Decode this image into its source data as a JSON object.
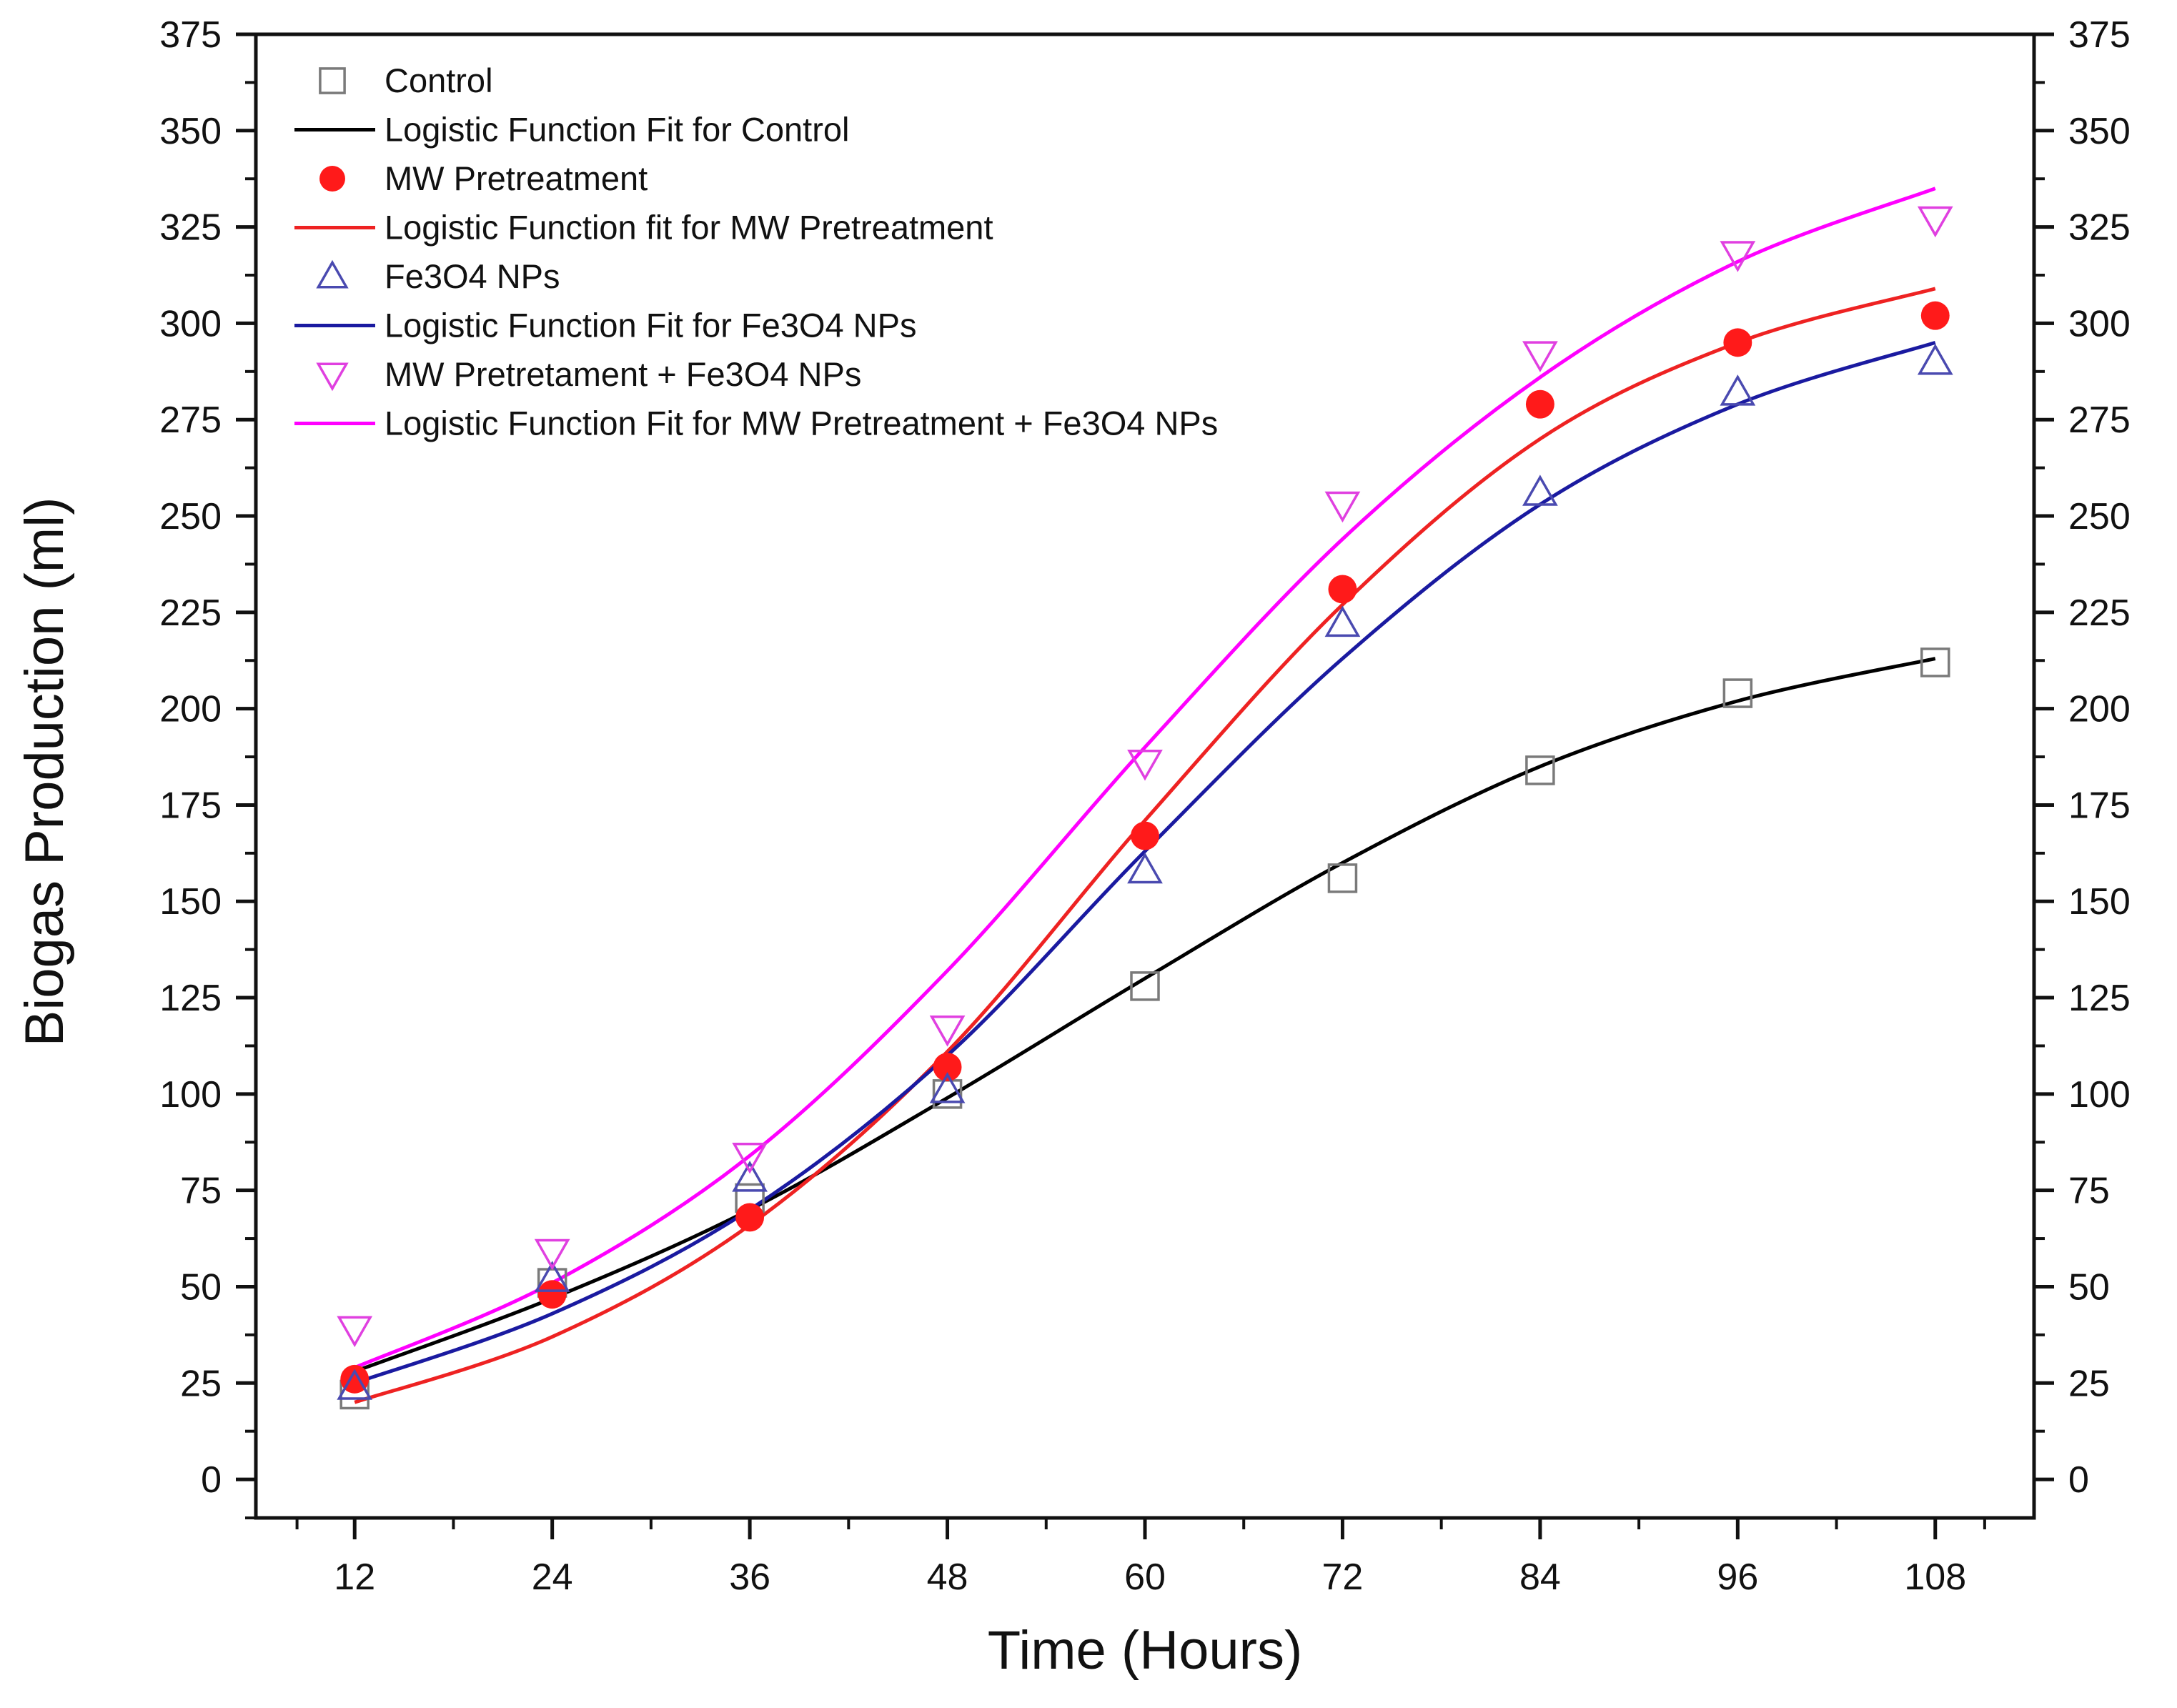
{
  "chart_data": {
    "type": "scatter",
    "title": "",
    "xlabel": "Time (Hours)",
    "ylabel": "Biogas Production (ml)",
    "xlim": [
      6,
      114
    ],
    "ylim": [
      -10,
      375
    ],
    "xticks": [
      12,
      24,
      36,
      48,
      60,
      72,
      84,
      96,
      108
    ],
    "xminor": [
      18,
      30,
      42,
      54,
      66,
      78,
      90,
      102
    ],
    "yticks": [
      0,
      25,
      50,
      75,
      100,
      125,
      150,
      175,
      200,
      225,
      250,
      275,
      300,
      325,
      350,
      375
    ],
    "grid": false,
    "legend_position": "top-left",
    "series": [
      {
        "name": "Control",
        "fit_name": "Logistic Function Fit for Control",
        "color": "#7a7a7a",
        "fit_color": "#000000",
        "marker": "square-open",
        "x": [
          12,
          24,
          36,
          48,
          60,
          72,
          84,
          96,
          108
        ],
        "values": [
          22,
          51,
          73,
          100,
          128,
          156,
          184,
          204,
          212
        ],
        "fit": [
          28,
          47,
          70,
          99,
          130,
          160,
          185,
          202,
          213
        ]
      },
      {
        "name": "MW Pretreatment",
        "fit_name": "Logistic Function fit for MW Pretreatment",
        "color": "#ff1a1a",
        "fit_color": "#ee2222",
        "marker": "circle-filled",
        "x": [
          12,
          24,
          36,
          48,
          60,
          72,
          84,
          96,
          108
        ],
        "values": [
          26,
          48,
          68,
          107,
          167,
          231,
          279,
          295,
          302
        ],
        "fit": [
          20,
          37,
          66,
          111,
          171,
          227,
          270,
          295,
          309
        ]
      },
      {
        "name": "Fe3O4 NPs",
        "fit_name": "Logistic Function Fit for Fe3O4 NPs",
        "color": "#4a4ab0",
        "fit_color": "#1a1aa0",
        "marker": "triangle-up-open",
        "x": [
          12,
          24,
          36,
          48,
          60,
          72,
          84,
          96,
          108
        ],
        "values": [
          24,
          52,
          78,
          101,
          158,
          222,
          256,
          282,
          290
        ],
        "fit": [
          25,
          43,
          70,
          110,
          163,
          213,
          253,
          279,
          295
        ]
      },
      {
        "name": "MW Pretretament + Fe3O4 NPs",
        "fit_name": "Logistic Function Fit for MW Pretreatment + Fe3O4 NPs",
        "color": "#e040e0",
        "fit_color": "#ff00ff",
        "marker": "triangle-down-open",
        "x": [
          12,
          24,
          36,
          48,
          60,
          72,
          84,
          96,
          108
        ],
        "values": [
          39,
          59,
          84,
          117,
          186,
          253,
          292,
          318,
          327
        ],
        "fit": [
          29,
          51,
          84,
          132,
          190,
          244,
          286,
          316,
          335
        ]
      }
    ]
  }
}
